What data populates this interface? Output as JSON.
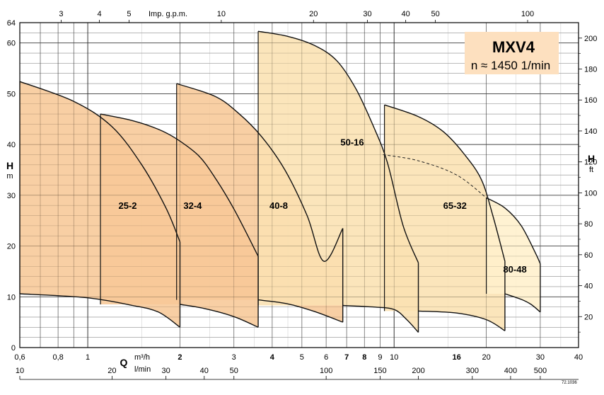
{
  "chart_data": {
    "type": "area",
    "model": "MXV4",
    "speed_label": "n ≈ 1450 1/min",
    "code": "72.1036",
    "x_axis": {
      "scale": "log",
      "letter": "Q",
      "unit_m3h": "m³/h",
      "unit_lmin": "l/min",
      "range_m3h": [
        0.6,
        40
      ],
      "ticks_m3h": [
        {
          "v": 0.6,
          "t": "0,6"
        },
        {
          "v": 0.8,
          "t": "0,8"
        },
        {
          "v": 1,
          "t": "1"
        },
        {
          "v": 2,
          "t": "2",
          "bold": true
        },
        {
          "v": 3,
          "t": "3"
        },
        {
          "v": 4,
          "t": "4",
          "bold": true
        },
        {
          "v": 5,
          "t": "5"
        },
        {
          "v": 6,
          "t": "6"
        },
        {
          "v": 7,
          "t": "7",
          "bold": true
        },
        {
          "v": 8,
          "t": "8",
          "bold": true
        },
        {
          "v": 9,
          "t": "9"
        },
        {
          "v": 10,
          "t": "10"
        },
        {
          "v": 16,
          "t": "16",
          "bold": true
        },
        {
          "v": 20,
          "t": "20"
        },
        {
          "v": 30,
          "t": "30"
        },
        {
          "v": 40,
          "t": "40"
        }
      ],
      "ticks_lmin": [
        "10",
        "20",
        "30",
        "40",
        "50",
        "100",
        "150",
        "200",
        "300",
        "400",
        "500"
      ],
      "ticks_lmin_values": [
        10,
        20,
        30,
        40,
        50,
        100,
        150,
        200,
        300,
        400,
        500
      ],
      "ticks_gpm": [
        "3",
        "4",
        "5",
        "10",
        "20",
        "30",
        "40",
        "50",
        "100"
      ],
      "ticks_gpm_values": [
        3,
        4,
        5,
        10,
        20,
        30,
        40,
        50,
        100
      ],
      "unit_gpm": "Imp. g.p.m."
    },
    "y_axis_m": {
      "letter": "H",
      "unit": "m",
      "range": [
        0,
        64
      ],
      "ticks": [
        "0",
        "10",
        "20",
        "30",
        "40",
        "50",
        "60",
        "64"
      ],
      "tick_values": [
        0,
        10,
        20,
        30,
        40,
        50,
        60,
        64
      ]
    },
    "y_axis_ft": {
      "letter": "H",
      "unit": "ft",
      "ticks": [
        "20",
        "40",
        "60",
        "80",
        "100",
        "120",
        "140",
        "160",
        "180",
        "200"
      ],
      "tick_values": [
        20,
        40,
        60,
        80,
        100,
        120,
        140,
        160,
        180,
        200
      ]
    },
    "series": [
      {
        "name": "25-2",
        "color": "#f7c897",
        "top": [
          [
            0.6,
            52.4
          ],
          [
            0.9,
            48.5
          ],
          [
            1.2,
            43.5
          ],
          [
            1.5,
            36.0
          ],
          [
            1.8,
            27.5
          ],
          [
            2.0,
            20.8
          ]
        ],
        "bottom": [
          [
            0.6,
            10.6
          ],
          [
            1.0,
            9.8
          ],
          [
            1.4,
            8.3
          ],
          [
            1.7,
            7.0
          ],
          [
            2.0,
            4.0
          ]
        ],
        "label_at": [
          1.35,
          28
        ]
      },
      {
        "name": "32-4",
        "color": "#f7c897",
        "top": [
          [
            1.1,
            46.0
          ],
          [
            1.4,
            44.7
          ],
          [
            1.7,
            43.0
          ],
          [
            1.95,
            41.1
          ],
          [
            2.3,
            37.8
          ],
          [
            2.6,
            33.5
          ],
          [
            3.0,
            27.3
          ],
          [
            3.6,
            18.0
          ]
        ],
        "bottom": [
          [
            2.0,
            8.5
          ],
          [
            2.4,
            7.7
          ],
          [
            3.0,
            6.1
          ],
          [
            3.6,
            4.0
          ]
        ],
        "label_at": [
          2.2,
          28
        ]
      },
      {
        "name": "40-8",
        "color": "#f7c897",
        "top": [
          [
            1.95,
            52.0
          ],
          [
            2.6,
            49.5
          ],
          [
            3.1,
            46.2
          ],
          [
            3.7,
            41.5
          ],
          [
            4.4,
            35.0
          ],
          [
            5.2,
            26.0
          ],
          [
            5.9,
            17.0
          ],
          [
            6.8,
            23.5
          ]
        ],
        "bottom": [
          [
            3.6,
            9.4
          ],
          [
            4.5,
            8.6
          ],
          [
            5.5,
            7.1
          ],
          [
            6.8,
            5.0
          ]
        ],
        "label_at": [
          4.2,
          28
        ]
      },
      {
        "name": "50-16",
        "color": "#fbe1b2",
        "top": [
          [
            3.6,
            62.3
          ],
          [
            4.5,
            61.3
          ],
          [
            5.5,
            59.5
          ],
          [
            6.5,
            56.5
          ],
          [
            7.5,
            51.0
          ],
          [
            8.5,
            44.0
          ],
          [
            9.5,
            36.5
          ],
          [
            10.7,
            24.0
          ],
          [
            12.0,
            16.7
          ]
        ],
        "bottom": [
          [
            6.8,
            8.3
          ],
          [
            8.5,
            8.0
          ],
          [
            10.0,
            7.5
          ],
          [
            11.0,
            5.5
          ],
          [
            12.0,
            3.0
          ]
        ],
        "label_at": [
          7.3,
          40.5
        ]
      },
      {
        "name": "65-32",
        "color": "#fbe1b2",
        "top": [
          [
            9.3,
            47.8
          ],
          [
            12.0,
            45.5
          ],
          [
            14.5,
            42.5
          ],
          [
            17.0,
            38.0
          ],
          [
            19.3,
            33.0
          ],
          [
            21.0,
            26.0
          ],
          [
            23.0,
            17.0
          ]
        ],
        "bottom": [
          [
            12.0,
            7.2
          ],
          [
            16.0,
            6.8
          ],
          [
            20.0,
            5.5
          ],
          [
            23.0,
            3.3
          ]
        ],
        "label_at": [
          15.8,
          28
        ]
      },
      {
        "name": "80-48",
        "color": "#fff0cc",
        "top": [
          [
            20.0,
            29.5
          ],
          [
            23.0,
            27.5
          ],
          [
            26.0,
            24.0
          ],
          [
            29.0,
            18.5
          ],
          [
            30.0,
            16.5
          ]
        ],
        "bottom": [
          [
            23.0,
            10.6
          ],
          [
            26.0,
            9.5
          ],
          [
            28.0,
            8.5
          ],
          [
            30.0,
            7.0
          ]
        ],
        "label_at": [
          24.8,
          15.5
        ]
      }
    ],
    "efficiency_line": [
      [
        9.2,
        38.0
      ],
      [
        12.0,
        36.8
      ],
      [
        16.0,
        34.0
      ],
      [
        20.0,
        29.5
      ]
    ]
  }
}
